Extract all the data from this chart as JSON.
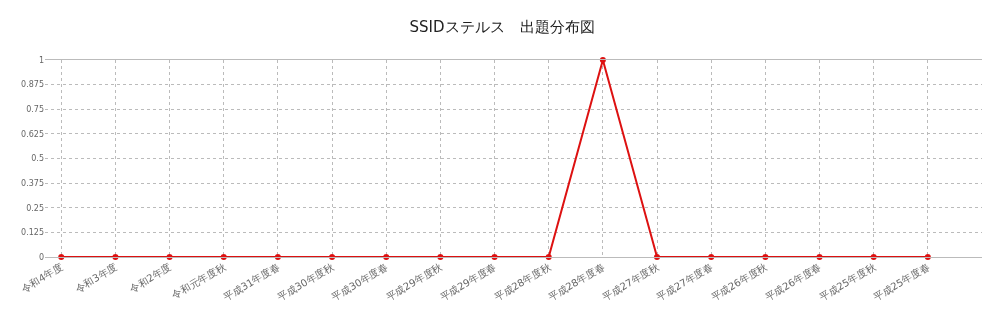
{
  "chart_data": {
    "type": "line",
    "title": "SSIDステルス　出題分布図",
    "categories": [
      "令和4年度",
      "令和3年度",
      "令和2年度",
      "令和元年度秋",
      "平成31年度春",
      "平成30年度秋",
      "平成30年度春",
      "平成29年度秋",
      "平成29年度春",
      "平成28年度秋",
      "平成28年度春",
      "平成27年度秋",
      "平成27年度春",
      "平成26年度秋",
      "平成26年度春",
      "平成25年度秋",
      "平成25年度春"
    ],
    "series": [
      {
        "color": "#dd1111",
        "values": [
          0,
          0,
          0,
          0,
          0,
          0,
          0,
          0,
          0,
          0,
          1,
          0,
          0,
          0,
          0,
          0,
          0
        ]
      }
    ],
    "ylim": [
      0,
      1
    ],
    "yticks": [
      0,
      0.125,
      0.25,
      0.375,
      0.5,
      0.625,
      0.75,
      0.875,
      1
    ],
    "grid": true,
    "legend": false,
    "marker": "circle",
    "line_style": "solid"
  }
}
